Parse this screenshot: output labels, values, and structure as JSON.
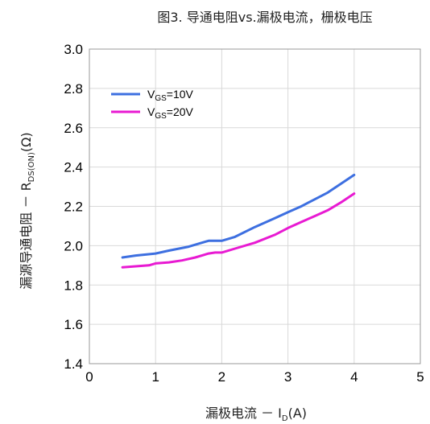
{
  "chart_data": {
    "type": "line",
    "title": "图3. 导通电阻vs.漏极电流，栅极电压",
    "xlabel": {
      "main": "漏极电流 － I",
      "sub": "D",
      "tail": "(A)"
    },
    "ylabel": {
      "main": "漏源导通电阻 － R",
      "sub": "DS(ON)",
      "tail": "(Ω)"
    },
    "xlim": [
      0,
      5
    ],
    "ylim": [
      1.4,
      3.0
    ],
    "xticks": [
      "0",
      "1",
      "2",
      "3",
      "4",
      "5"
    ],
    "yticks": [
      "1.4",
      "1.6",
      "1.8",
      "2.0",
      "2.2",
      "2.4",
      "2.6",
      "2.8",
      "3.0"
    ],
    "grid": true,
    "legend_position": "top-left",
    "series": [
      {
        "name": "V_GS=10V",
        "label_main": "V",
        "label_sub": "GS",
        "label_tail": "=10V",
        "color": "#3d6fe0",
        "x": [
          0.5,
          0.7,
          1.0,
          1.2,
          1.5,
          1.7,
          1.8,
          2.0,
          2.2,
          2.5,
          2.8,
          3.0,
          3.2,
          3.4,
          3.6,
          3.8,
          4.0
        ],
        "y": [
          1.94,
          1.95,
          1.96,
          1.975,
          1.995,
          2.015,
          2.025,
          2.025,
          2.045,
          2.095,
          2.14,
          2.17,
          2.2,
          2.235,
          2.27,
          2.315,
          2.36
        ]
      },
      {
        "name": "V_GS=20V",
        "label_main": "V",
        "label_sub": "GS",
        "label_tail": "=20V",
        "color": "#e81ad2",
        "x": [
          0.5,
          0.7,
          0.9,
          1.0,
          1.2,
          1.4,
          1.6,
          1.8,
          1.9,
          2.0,
          2.2,
          2.5,
          2.8,
          3.0,
          3.2,
          3.4,
          3.6,
          3.8,
          4.0
        ],
        "y": [
          1.89,
          1.895,
          1.9,
          1.91,
          1.915,
          1.925,
          1.94,
          1.96,
          1.965,
          1.965,
          1.985,
          2.015,
          2.055,
          2.09,
          2.12,
          2.15,
          2.18,
          2.22,
          2.265
        ]
      }
    ]
  }
}
